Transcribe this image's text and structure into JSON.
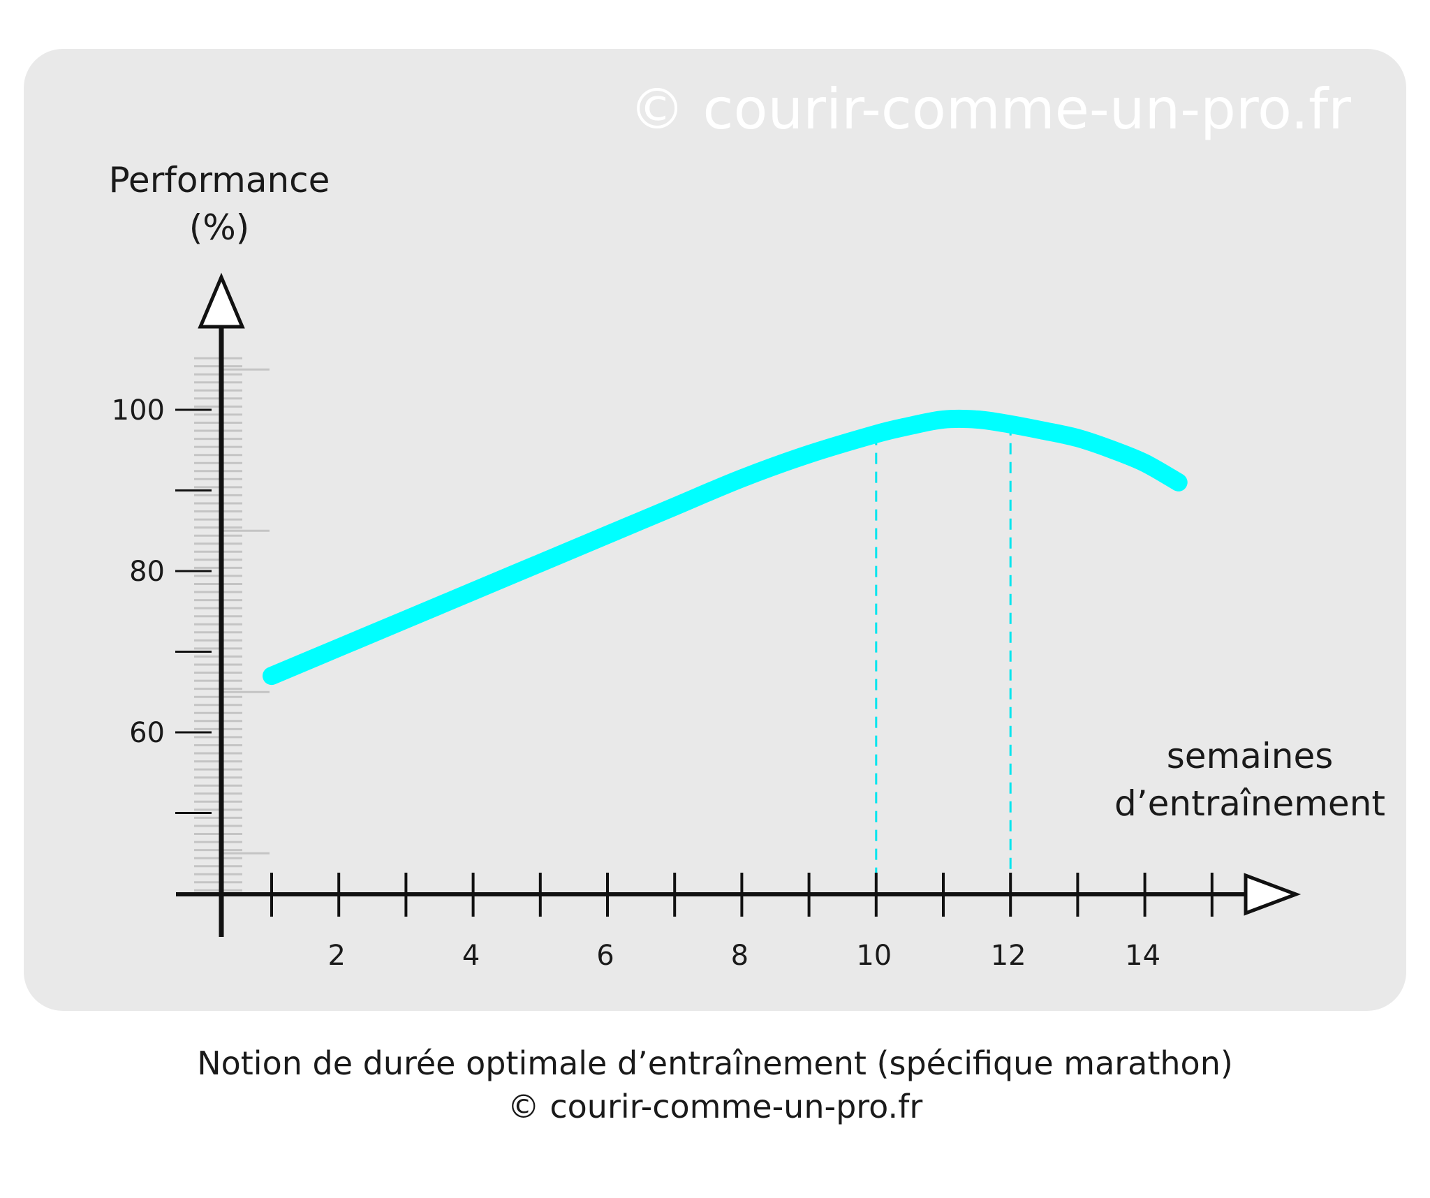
{
  "watermark": "© courir-comme-un-pro.fr",
  "caption": {
    "line1": "Notion de durée optimale d’entraînement (spécifique marathon)",
    "line2": "© courir-comme-un-pro.fr"
  },
  "chart_data": {
    "type": "line",
    "title": "",
    "ylabel_line1": "Performance",
    "ylabel_line2": "(%)",
    "xlabel_line1": "semaines",
    "xlabel_line2": "d’entraînement",
    "x_ticks": [
      1,
      2,
      3,
      4,
      5,
      6,
      7,
      8,
      9,
      10,
      11,
      12,
      13,
      14,
      15
    ],
    "x_tick_labels": [
      {
        "x": 2,
        "label": "2"
      },
      {
        "x": 4,
        "label": "4"
      },
      {
        "x": 6,
        "label": "6"
      },
      {
        "x": 8,
        "label": "8"
      },
      {
        "x": 10,
        "label": "10"
      },
      {
        "x": 12,
        "label": "12"
      },
      {
        "x": 14,
        "label": "14"
      }
    ],
    "y_ticks": [
      50,
      60,
      70,
      80,
      90,
      100
    ],
    "y_tick_labels": [
      {
        "y": 60,
        "label": "60"
      },
      {
        "y": 80,
        "label": "80"
      },
      {
        "y": 100,
        "label": "100"
      }
    ],
    "xlim": [
      0.3,
      16
    ],
    "ylim": [
      40,
      115
    ],
    "series": [
      {
        "color": "#00ffff",
        "x": [
          1,
          2,
          3,
          4,
          5,
          6,
          7,
          8,
          9,
          10,
          10.5,
          11,
          11.5,
          12,
          12.5,
          13,
          13.5,
          14,
          14.5
        ],
        "y": [
          67,
          70.5,
          74,
          77.5,
          81,
          84.5,
          88,
          91.5,
          94.5,
          97,
          98,
          98.8,
          98.8,
          98.2,
          97.4,
          96.5,
          95.1,
          93.4,
          91
        ]
      }
    ],
    "reference_lines": [
      {
        "x": 10,
        "y": 97,
        "style": "dashed",
        "color": "#00e5ee"
      },
      {
        "x": 12,
        "y": 98.2,
        "style": "dashed",
        "color": "#00e5ee"
      }
    ],
    "grid": false,
    "legend": "none"
  }
}
